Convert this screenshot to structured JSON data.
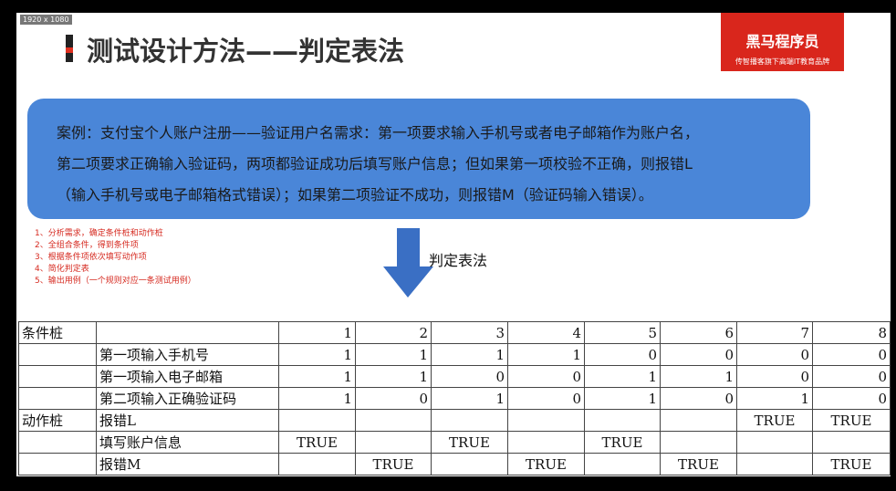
{
  "header": {
    "resolution": "1920 x 1080",
    "title": "测试设计方法——判定表法",
    "logo": {
      "name": "黑马程序员",
      "slogan": "传智播客旗下高端IT教育品牌"
    }
  },
  "case_box": {
    "lines": [
      "案例：支付宝个人账户注册——验证用户名需求：第一项要求输入手机号或者电子邮箱作为账户名，",
      "第二项要求正确输入验证码，两项都验证成功后填写账户信息；但如果第一项校验不正确，则报错L",
      "（输入手机号或电子邮箱格式错误）；如果第二项验证不成功，则报错M（验证码输入错误）。"
    ]
  },
  "steps": [
    "1、分析需求，确定条件桩和动作桩",
    "2、全组合条件，得到条件项",
    "3、根据条件项依次填写动作项",
    "4、简化判定表",
    "5、输出用例（一个规则对应一条测试用例）"
  ],
  "arrow_label": "判定表法",
  "table": {
    "rows": [
      [
        "条件桩",
        null,
        1,
        2,
        3,
        4,
        5,
        6,
        7,
        8
      ],
      [
        null,
        "第一项输入手机号",
        1,
        1,
        1,
        1,
        0,
        0,
        0,
        0
      ],
      [
        null,
        "第一项输入电子邮箱",
        1,
        1,
        0,
        0,
        1,
        1,
        0,
        0
      ],
      [
        null,
        "第二项输入正确验证码",
        1,
        0,
        1,
        0,
        1,
        0,
        1,
        0
      ],
      [
        "动作桩",
        "报错L",
        null,
        null,
        null,
        null,
        null,
        null,
        "TRUE",
        "TRUE"
      ],
      [
        null,
        "填写账户信息",
        "TRUE",
        null,
        "TRUE",
        null,
        "TRUE",
        null,
        null,
        null
      ],
      [
        null,
        "报错M",
        null,
        "TRUE",
        null,
        "TRUE",
        null,
        "TRUE",
        null,
        "TRUE"
      ]
    ]
  }
}
